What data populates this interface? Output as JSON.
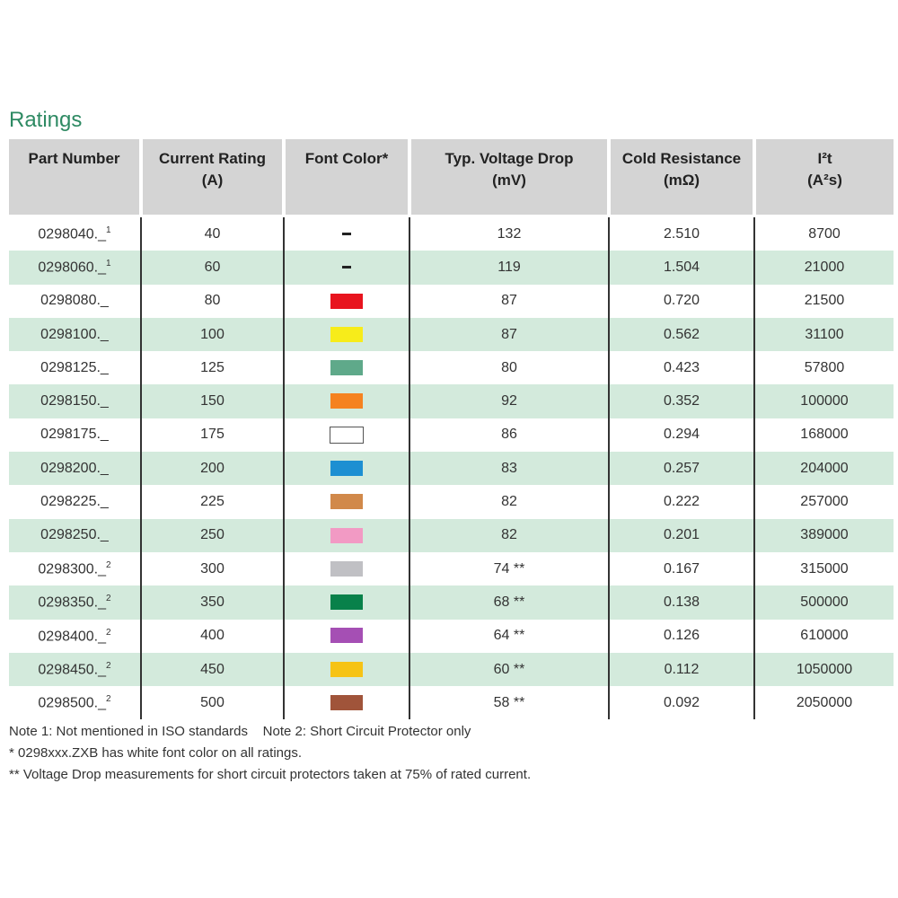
{
  "title": "Ratings",
  "headers": [
    [
      "Part Number",
      ""
    ],
    [
      "Current Rating",
      "(A)"
    ],
    [
      "Font Color*",
      ""
    ],
    [
      "Typ. Voltage Drop",
      "(mV)"
    ],
    [
      "Cold Resistance",
      "(mΩ)"
    ],
    [
      "I²t",
      "(A²s)"
    ]
  ],
  "rows": [
    {
      "part": "0298040._",
      "note": "1",
      "current": "40",
      "color": null,
      "vdrop": "132",
      "res": "2.510",
      "i2t": "8700"
    },
    {
      "part": "0298060._",
      "note": "1",
      "current": "60",
      "color": null,
      "vdrop": "119",
      "res": "1.504",
      "i2t": "21000"
    },
    {
      "part": "0298080._",
      "note": "",
      "current": "80",
      "color": "#e8141e",
      "vdrop": "87",
      "res": "0.720",
      "i2t": "21500"
    },
    {
      "part": "0298100._",
      "note": "",
      "current": "100",
      "color": "#f7ec1a",
      "vdrop": "87",
      "res": "0.562",
      "i2t": "31100"
    },
    {
      "part": "0298125._",
      "note": "",
      "current": "125",
      "color": "#5fa98a",
      "vdrop": "80",
      "res": "0.423",
      "i2t": "57800"
    },
    {
      "part": "0298150._",
      "note": "",
      "current": "150",
      "color": "#f58220",
      "vdrop": "92",
      "res": "0.352",
      "i2t": "100000"
    },
    {
      "part": "0298175._",
      "note": "",
      "current": "175",
      "color": "#ffffff",
      "vdrop": "86",
      "res": "0.294",
      "i2t": "168000"
    },
    {
      "part": "0298200._",
      "note": "",
      "current": "200",
      "color": "#1d8fd2",
      "vdrop": "83",
      "res": "0.257",
      "i2t": "204000"
    },
    {
      "part": "0298225._",
      "note": "",
      "current": "225",
      "color": "#d1894a",
      "vdrop": "82",
      "res": "0.222",
      "i2t": "257000"
    },
    {
      "part": "0298250._",
      "note": "",
      "current": "250",
      "color": "#f29ac4",
      "vdrop": "82",
      "res": "0.201",
      "i2t": "389000"
    },
    {
      "part": "0298300._",
      "note": "2",
      "current": "300",
      "color": "#c0c0c4",
      "vdrop": "74 **",
      "res": "0.167",
      "i2t": "315000"
    },
    {
      "part": "0298350._",
      "note": "2",
      "current": "350",
      "color": "#08814a",
      "vdrop": "68 **",
      "res": "0.138",
      "i2t": "500000"
    },
    {
      "part": "0298400._",
      "note": "2",
      "current": "400",
      "color": "#a54fb4",
      "vdrop": "64 **",
      "res": "0.126",
      "i2t": "610000"
    },
    {
      "part": "0298450._",
      "note": "2",
      "current": "450",
      "color": "#f6c315",
      "vdrop": "60 **",
      "res": "0.112",
      "i2t": "1050000"
    },
    {
      "part": "0298500._",
      "note": "2",
      "current": "500",
      "color": "#a0543a",
      "vdrop": "58 **",
      "res": "0.092",
      "i2t": "2050000"
    }
  ],
  "notes": [
    "Note 1: Not mentioned in ISO standards    Note 2: Short Circuit Protector only",
    "* 0298xxx.ZXB has white font color on all ratings.",
    "** Voltage Drop measurements for short circuit protectors taken at 75% of rated current."
  ]
}
